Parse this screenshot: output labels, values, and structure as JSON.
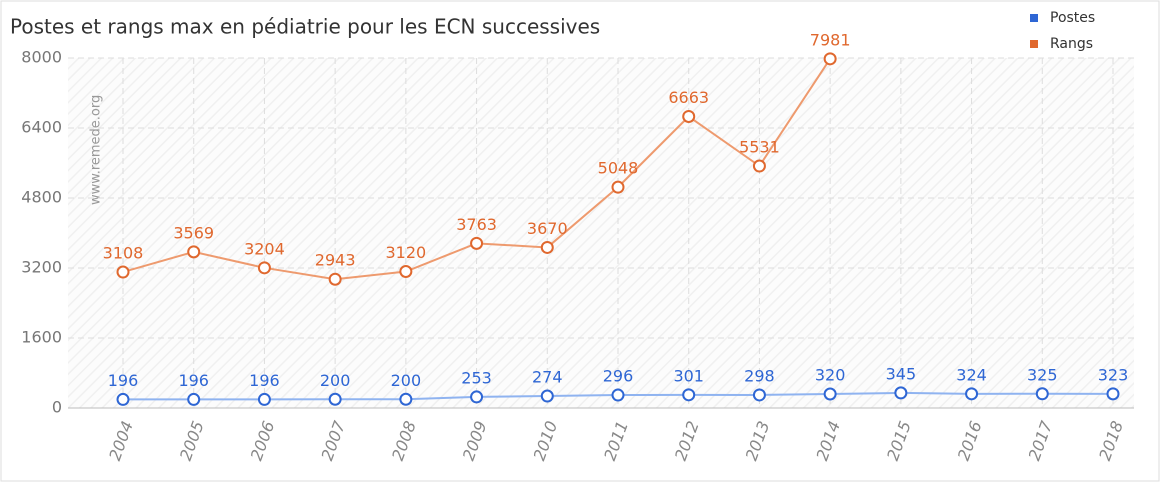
{
  "chart_data": {
    "type": "line",
    "title": "Postes et rangs max en pédiatrie pour les ECN successives",
    "annotation": "www.remede.org",
    "categories": [
      "2004",
      "2005",
      "2006",
      "2007",
      "2008",
      "2009",
      "2010",
      "2011",
      "2012",
      "2013",
      "2014",
      "2015",
      "2016",
      "2017",
      "2018"
    ],
    "series": [
      {
        "name": "Postes",
        "color": "#2e66d4",
        "line_color": "#8fb3f0",
        "values": [
          196,
          196,
          196,
          200,
          200,
          253,
          274,
          296,
          301,
          298,
          320,
          345,
          324,
          325,
          323
        ]
      },
      {
        "name": "Rangs",
        "color": "#e0682e",
        "line_color": "#ee9a6e",
        "values": [
          3108,
          3569,
          3204,
          2943,
          3120,
          3763,
          3670,
          5048,
          6663,
          5531,
          7981,
          null,
          null,
          null,
          null
        ]
      }
    ],
    "ylim": [
      0,
      8000
    ],
    "yticks": [
      0,
      1600,
      3200,
      4800,
      6400,
      8000
    ],
    "grid": true,
    "legend": "top-right"
  }
}
